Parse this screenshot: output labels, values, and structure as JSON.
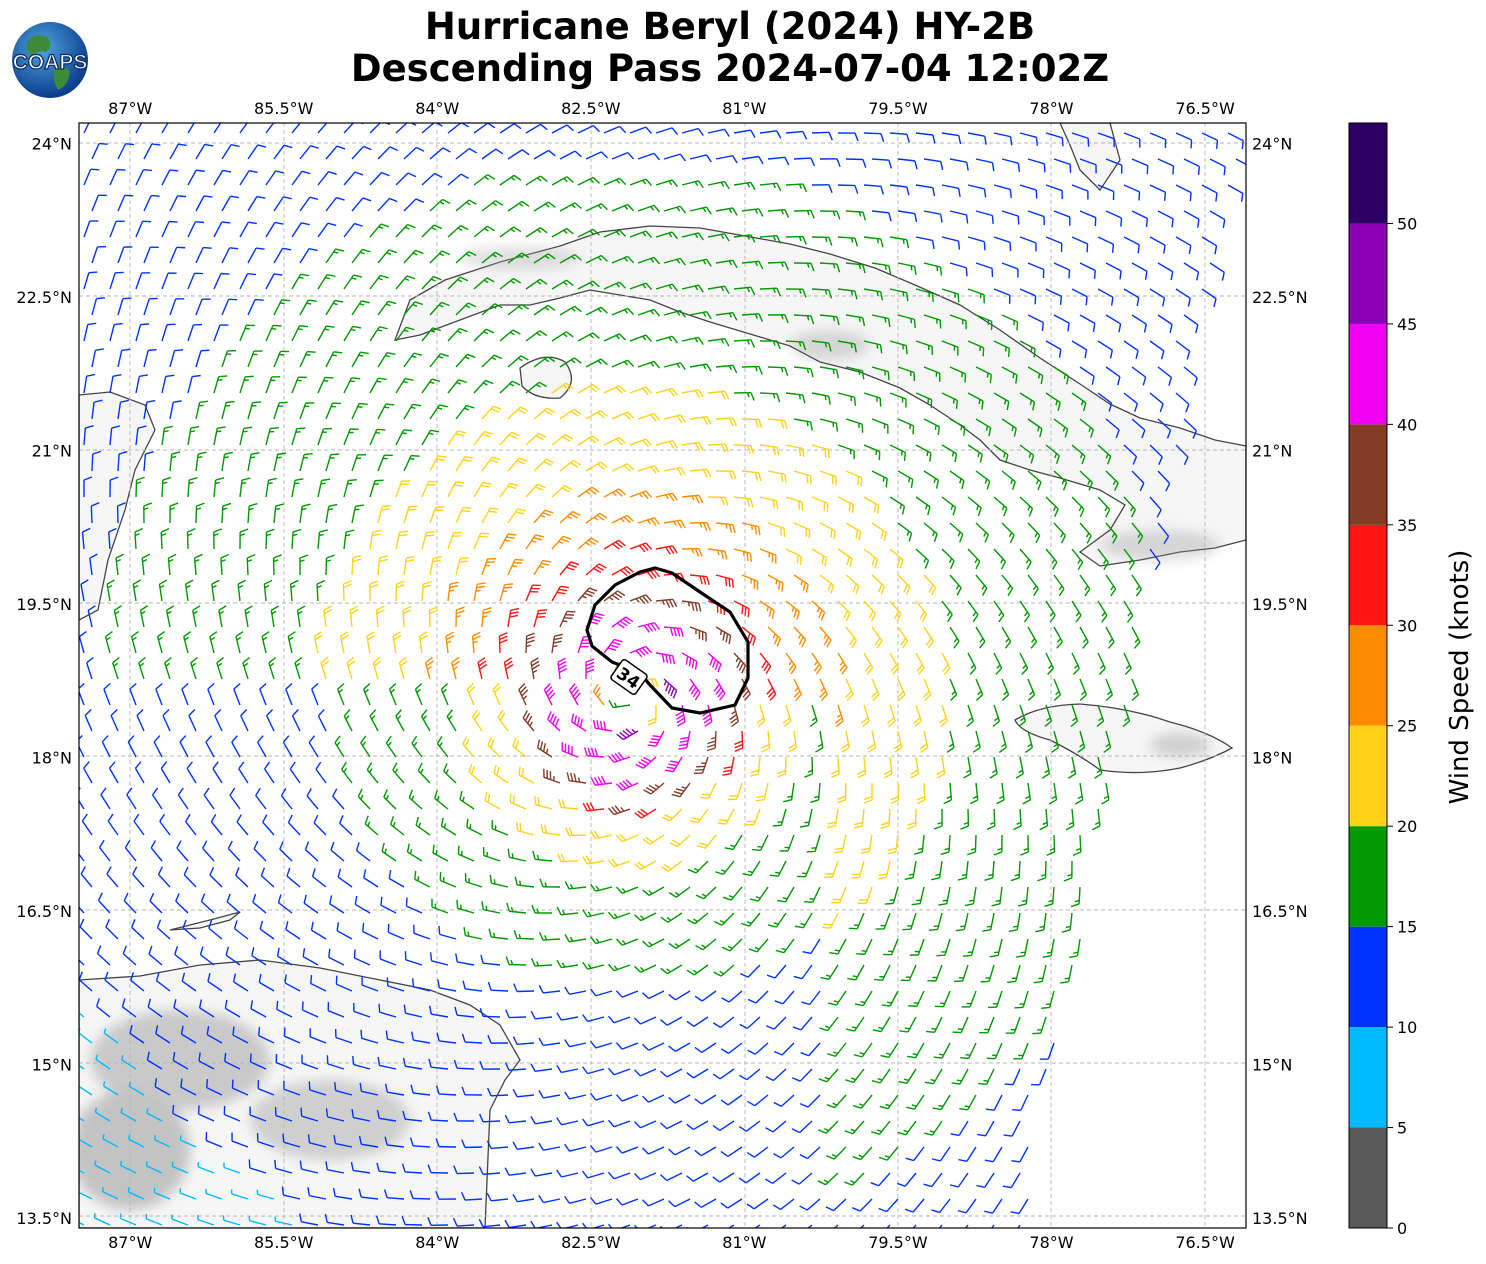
{
  "title": {
    "line1": "Hurricane Beryl (2024) HY-2B",
    "line2": "Descending Pass 2024-07-04 12:02Z"
  },
  "logo": {
    "text": "COAPS",
    "icon": "globe-logo-icon"
  },
  "map": {
    "lon_ticks": [
      "87°W",
      "85.5°W",
      "84°W",
      "82.5°W",
      "81°W",
      "79.5°W",
      "78°W",
      "76.5°W"
    ],
    "lat_ticks": [
      "24°N",
      "22.5°N",
      "21°N",
      "19.5°N",
      "18°N",
      "16.5°N",
      "15°N",
      "13.5°N"
    ],
    "lon_range": [
      -87.5,
      -76.1
    ],
    "lat_range": [
      13.4,
      24.2
    ],
    "gridlines": true,
    "storm_center": {
      "lon": -82.1,
      "lat": 18.6
    },
    "wind_radius_contour": {
      "label": "34",
      "units": "knots"
    }
  },
  "colorbar": {
    "label": "Wind Speed (knots)",
    "ticks": [
      "0",
      "5",
      "10",
      "15",
      "20",
      "25",
      "30",
      "35",
      "40",
      "45",
      "50"
    ],
    "bins": [
      {
        "min": 0,
        "max": 5,
        "color": "#595959"
      },
      {
        "min": 5,
        "max": 10,
        "color": "#00bbff"
      },
      {
        "min": 10,
        "max": 15,
        "color": "#0033ff"
      },
      {
        "min": 15,
        "max": 20,
        "color": "#009900"
      },
      {
        "min": 20,
        "max": 25,
        "color": "#ffd21a"
      },
      {
        "min": 25,
        "max": 30,
        "color": "#ff8c00"
      },
      {
        "min": 30,
        "max": 35,
        "color": "#ff1414"
      },
      {
        "min": 35,
        "max": 40,
        "color": "#823c28"
      },
      {
        "min": 40,
        "max": 45,
        "color": "#f000f0"
      },
      {
        "min": 45,
        "max": 50,
        "color": "#8c00b4"
      },
      {
        "min": 50,
        "max": 55,
        "color": "#2d0064"
      }
    ]
  }
}
